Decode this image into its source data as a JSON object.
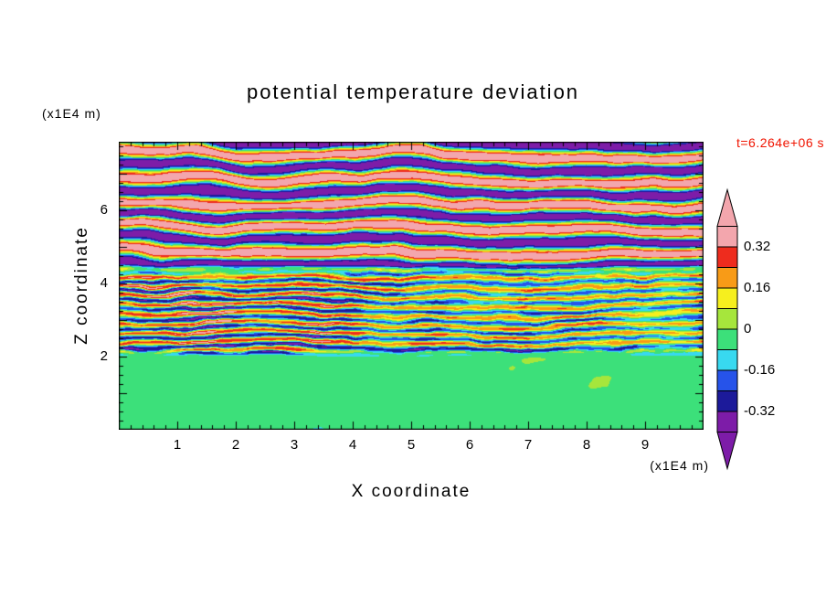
{
  "page": {
    "background": "#ffffff"
  },
  "chart_data": {
    "type": "heatmap",
    "title": "potential temperature deviation",
    "xlabel": "X coordinate",
    "ylabel": "Z coordinate",
    "x_unit_label": "(x1E4 m)",
    "z_unit_label": "(x1E4 m)",
    "time_annotation": "t=6.264e+06 s",
    "time_color": "#f01400",
    "xlim": [
      0,
      10
    ],
    "zlim": [
      0,
      7.875
    ],
    "x_major_ticks": [
      1,
      2,
      3,
      4,
      5,
      6,
      7,
      8,
      9
    ],
    "x_minor_step": 0.2,
    "z_tick_labels": [
      2,
      4,
      6
    ],
    "z_minor_step": 0.25,
    "grid": false,
    "colorbar": {
      "position": "right",
      "tick_labels": [
        "0.32",
        "0.16",
        "0",
        "-0.16",
        "-0.32"
      ],
      "tick_values": [
        0.32,
        0.16,
        0,
        -0.16,
        -0.32
      ],
      "levels": [
        -0.4,
        -0.32,
        -0.24,
        -0.16,
        -0.08,
        0,
        0.08,
        0.16,
        0.24,
        0.32,
        0.4
      ],
      "band_colors": [
        "#7d1ca8",
        "#1c1a9a",
        "#2653ea",
        "#38d9f0",
        "#3ce07a",
        "#a6e63c",
        "#f6ef1e",
        "#f89b17",
        "#ee2c1e",
        "#f3a6ad"
      ],
      "under_arrow_color": "#7d1ca8",
      "over_arrow_color": "#f3a6ad"
    },
    "field_model": {
      "pattern_description": "Stratified turbulence: quiescent green (~0) layer below z=2 with weak chartreuse swirls, thin cyan interface line at z~2.1, fine-scale +/-0.3 streaks (red/yellow/cyan/blue on green) between z=2 and z=4.4, and large-amplitude wavy pink/purple (+/-0.4) bands above z=4.4.",
      "warp": 0.38,
      "top": {
        "z_start": 4.4,
        "blend": 0.5,
        "amp": 0.45,
        "cycles_per_unit": 1.5,
        "texture": 0.08
      },
      "middle": {
        "amp_base": 0.08,
        "amp_var": 0.34,
        "cycles_per_unit": 3.9
      },
      "bottom": {
        "z_end": 2.1,
        "blend": 0.22,
        "base": -0.03,
        "amp": 0.055
      },
      "interface_line": {
        "z": 2.12,
        "depth": -0.12,
        "width": 0.09
      }
    }
  }
}
